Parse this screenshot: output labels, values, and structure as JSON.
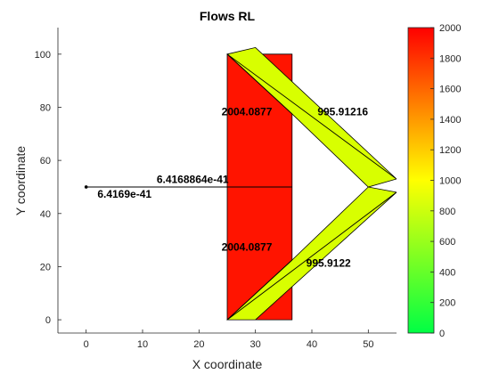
{
  "chart_data": {
    "type": "flow-diagram",
    "title": "Flows RL",
    "xlabel": "X coordinate",
    "ylabel": "Y coordinate",
    "xlim": [
      -5,
      55
    ],
    "ylim": [
      -5,
      110
    ],
    "xticks": [
      0,
      10,
      20,
      30,
      40,
      50
    ],
    "yticks": [
      0,
      20,
      40,
      60,
      80,
      100
    ],
    "colorbar": {
      "min": 0,
      "max": 2000,
      "ticks": [
        0,
        200,
        400,
        600,
        800,
        1000,
        1200,
        1400,
        1600,
        1800,
        2000
      ],
      "colors": [
        "#00ff44",
        "#ffff00",
        "#ff0000"
      ]
    },
    "patches": [
      {
        "name": "rect-main",
        "fill": "#ff1400",
        "points": [
          [
            25,
            0
          ],
          [
            36.5,
            0
          ],
          [
            36.5,
            100
          ],
          [
            25,
            100
          ]
        ]
      },
      {
        "name": "upper-arm",
        "fill": "#d8ff00",
        "points": [
          [
            25,
            100
          ],
          [
            30,
            102.5
          ],
          [
            55,
            53
          ],
          [
            50,
            50
          ],
          [
            36.5,
            77.5
          ]
        ]
      },
      {
        "name": "lower-arm",
        "fill": "#d8ff00",
        "points": [
          [
            25,
            0
          ],
          [
            30,
            0
          ],
          [
            55,
            48
          ],
          [
            50,
            50
          ],
          [
            36.5,
            22.5
          ]
        ]
      }
    ],
    "lines": [
      {
        "name": "flow-line-horizontal",
        "points": [
          [
            0,
            50
          ],
          [
            36.5,
            50
          ]
        ]
      },
      {
        "name": "diagonal-upper-rect",
        "points": [
          [
            25,
            100
          ],
          [
            36.5,
            77.5
          ]
        ]
      },
      {
        "name": "diagonal-lower-rect",
        "points": [
          [
            25,
            0
          ],
          [
            36.5,
            22.5
          ]
        ]
      },
      {
        "name": "upper-arm-edge",
        "points": [
          [
            25,
            100
          ],
          [
            55,
            53
          ]
        ]
      },
      {
        "name": "lower-arm-edge",
        "points": [
          [
            25,
            0
          ],
          [
            55,
            48
          ]
        ]
      }
    ],
    "point": {
      "name": "origin-point",
      "x": 0,
      "y": 50
    },
    "labels": [
      {
        "name": "label-rect-upper",
        "text": "2004.0877",
        "x": 24,
        "y": 77
      },
      {
        "name": "label-arm-upper",
        "text": "995.91216",
        "x": 41,
        "y": 77
      },
      {
        "name": "label-rect-lower",
        "text": "2004.0877",
        "x": 24,
        "y": 26
      },
      {
        "name": "label-arm-lower",
        "text": "995.9122",
        "x": 39,
        "y": 20
      },
      {
        "name": "label-flow-line",
        "text": "6.4168864e-41",
        "x": 12.5,
        "y": 51.5
      },
      {
        "name": "label-origin",
        "text": "6.4169e-41",
        "x": 2,
        "y": 46
      }
    ]
  }
}
